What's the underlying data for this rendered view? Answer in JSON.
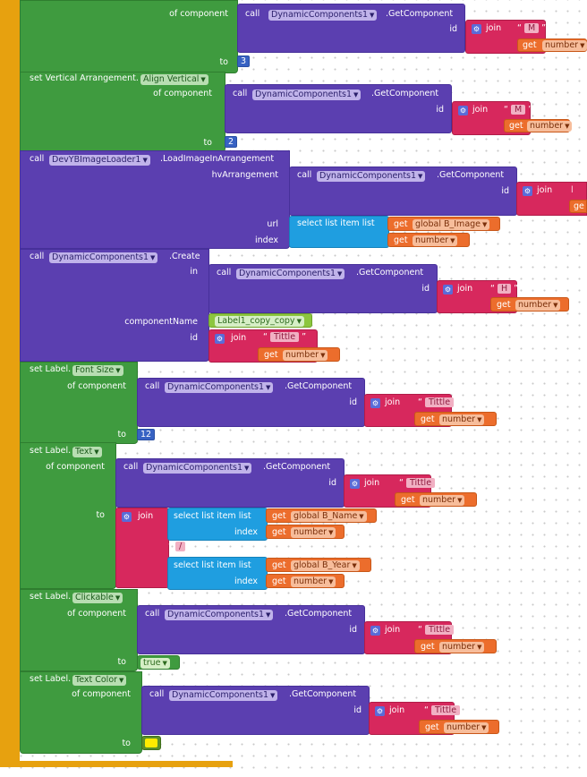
{
  "blocks": {
    "of_component": "of component",
    "to": "to",
    "call": "call",
    "get_component": ".GetComponent",
    "id": "id",
    "join": "join",
    "get": "get",
    "number": "number",
    "dynamic_components": "DynamicComponents1",
    "set_va": "set Vertical Arrangement.",
    "align_vertical": "Align Vertical",
    "devyb": "DevYBImageLoader1",
    "load_image": ".LoadImageInArrangement",
    "hv_arrangement": "hvArrangement",
    "url": "url",
    "select_list_item": "select list item  list",
    "index": "index",
    "global_b_image": "global B_Image",
    "create": ".Create",
    "in": "in",
    "component_name": "componentName",
    "label_copy": "Label1_copy_copy",
    "set_label": "set Label.",
    "font_size": "Font Size",
    "text_prop": "Text",
    "clickable": "Clickable",
    "text_color": "Text Color",
    "global_b_name": "global B_Name",
    "global_b_year": "global B_Year",
    "true_val": "true",
    "str_m": "M",
    "str_h": "H",
    "str_tittle": "Tittle",
    "str_slash": "/",
    "num_3": "3",
    "num_2": "2",
    "num_12": "12",
    "clip_l": "l",
    "clip_ge": "ge"
  },
  "colors": {
    "procedure": "#5b3fb0",
    "setter": "#3f9b3f",
    "text": "#d7285d",
    "variable": "#ec6d2c",
    "list": "#1f9ee0",
    "number": "#3762c3",
    "event": "#e7a10f",
    "swatch": "#ffeb00"
  }
}
